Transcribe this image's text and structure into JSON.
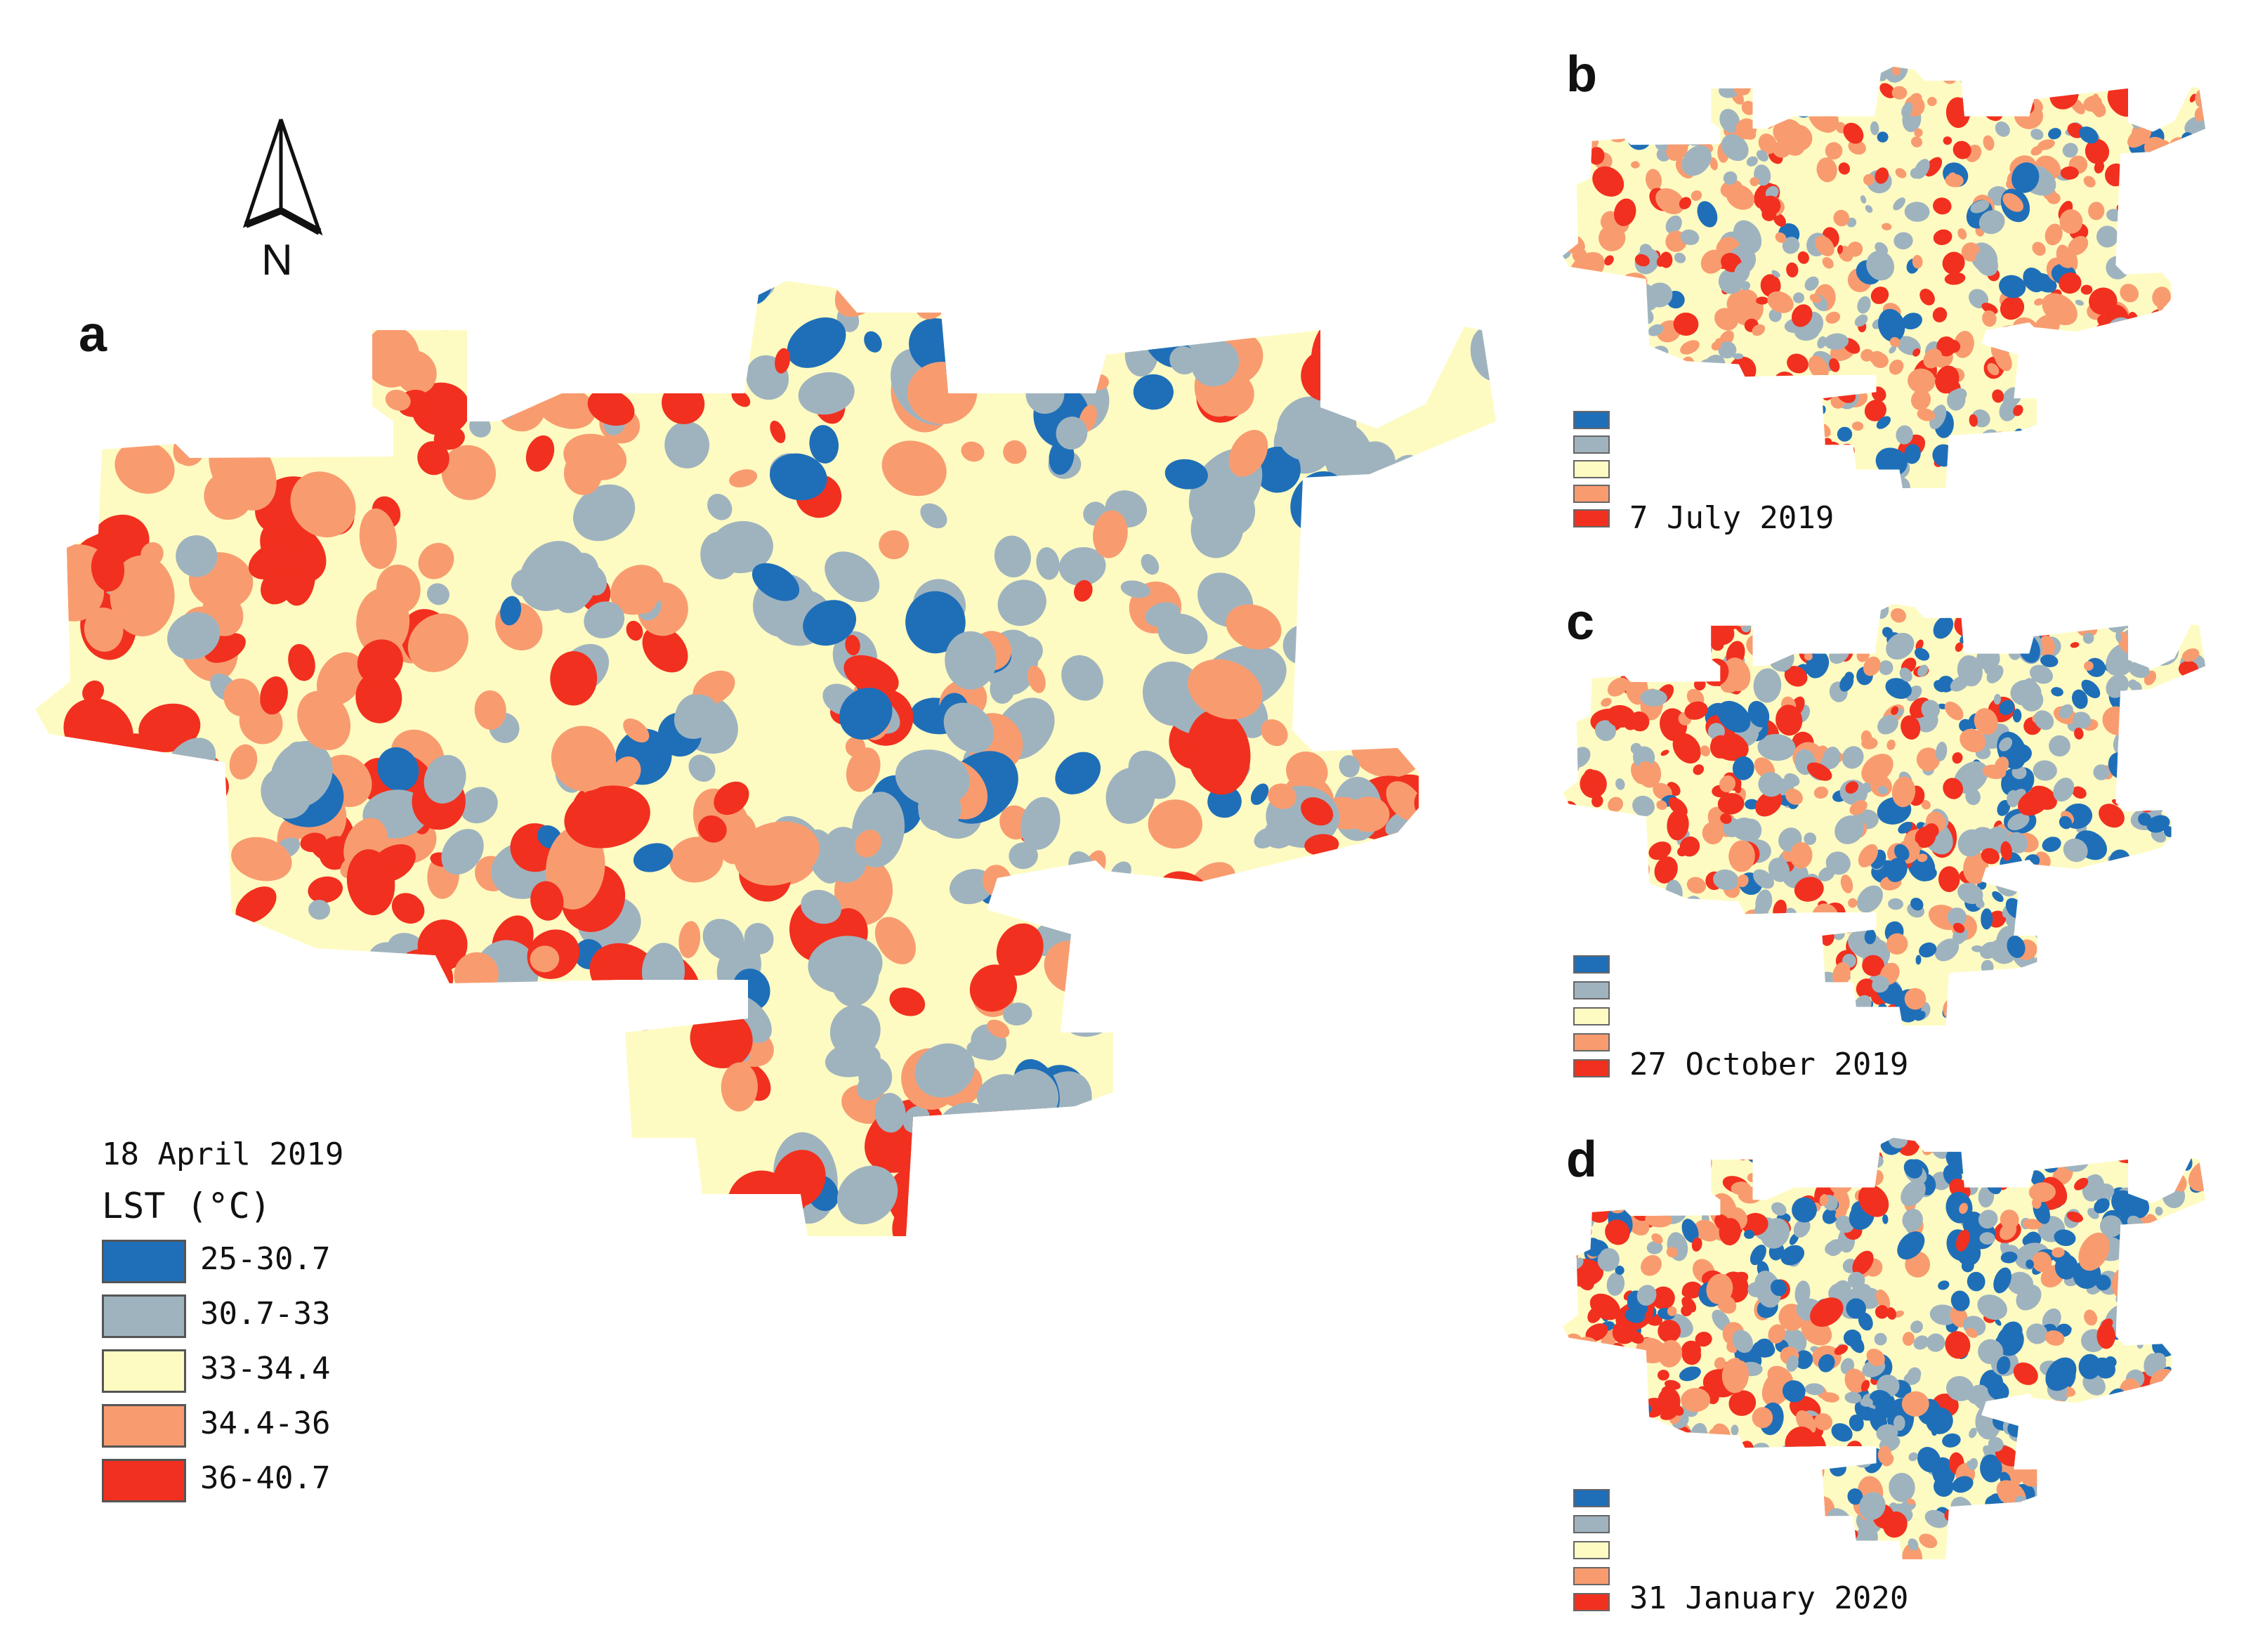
{
  "colors": {
    "c1": "#1f6fb8",
    "c2": "#9fb3bf",
    "c3": "#fefbc2",
    "c4": "#f89c70",
    "c5": "#f2301f"
  },
  "north": {
    "label": "N"
  },
  "panel_a": {
    "label": "a",
    "date": "18 April 2019",
    "unit": "LST (°C)",
    "classes": [
      "25-30.7",
      "30.7-33",
      "33-34.4",
      "34.4-36",
      "36-40.7"
    ]
  },
  "panel_b": {
    "label": "b",
    "date": "7 July 2019"
  },
  "panel_c": {
    "label": "c",
    "date": "27 October 2019"
  },
  "panel_d": {
    "label": "d",
    "date": "31 January 2020"
  }
}
